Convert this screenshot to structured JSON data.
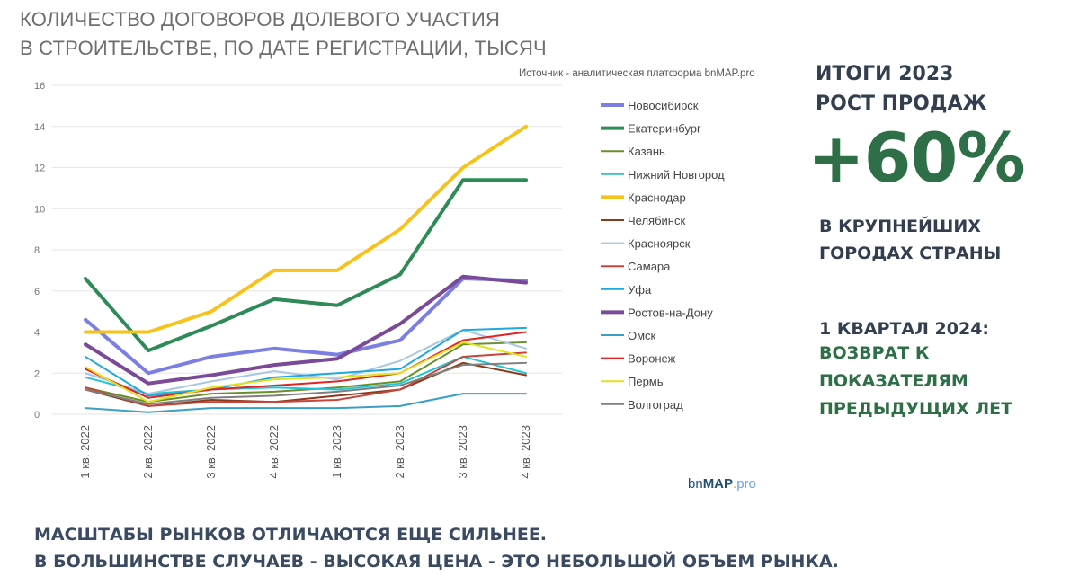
{
  "title": {
    "line1": "КОЛИЧЕСТВО ДОГОВОРОВ ДОЛЕВОГО УЧАСТИЯ",
    "line2": "В СТРОИТЕЛЬСТВЕ, ПО ДАТЕ РЕГИСТРАЦИИ, ТЫСЯЧ"
  },
  "source": "Источник - аналитическая платформа bnMAP.pro",
  "logo": {
    "bn": "bn",
    "map": "MAP",
    "dot": ".",
    "pro": "pro"
  },
  "right_panel": {
    "head1": "ИТОГИ 2023",
    "head2": "РОСТ ПРОДАЖ",
    "big": "+60%",
    "sub1": "В КРУПНЕЙШИХ",
    "sub2": "ГОРОДАХ СТРАНЫ",
    "q_head": "1 КВАРТАЛ 2024:",
    "q1": "ВОЗВРАТ К",
    "q2": "ПОКАЗАТЕЛЯМ",
    "q3": "ПРЕДЫДУЩИХ ЛЕТ"
  },
  "bottom": {
    "line1": "МАСШТАБЫ РЫНКОВ ОТЛИЧАЮТСЯ ЕЩЕ СИЛЬНЕЕ.",
    "line2": "В БОЛЬШИНСТВЕ СЛУЧАЕВ - ВЫСОКАЯ ЦЕНА  - ЭТО НЕБОЛЬШОЙ ОБЪЕМ РЫНКА."
  },
  "chart_data": {
    "type": "line",
    "categories": [
      "1 кв. 2022",
      "2 кв. 2022",
      "3 кв. 2022",
      "4 кв. 2022",
      "1 кв. 2023",
      "2 кв. 2023",
      "3 кв. 2023",
      "4 кв. 2023"
    ],
    "ylim": [
      0,
      16
    ],
    "yticks": [
      0,
      2,
      4,
      6,
      8,
      10,
      12,
      14,
      16
    ],
    "grid": true,
    "legend_position": "right",
    "series": [
      {
        "name": "Новосибирск",
        "color": "#7b7fe3",
        "bold": true,
        "values": [
          4.6,
          2.0,
          2.8,
          3.2,
          2.9,
          3.6,
          6.6,
          6.5
        ]
      },
      {
        "name": "Екатеринбург",
        "color": "#2e8b57",
        "bold": true,
        "values": [
          6.6,
          3.1,
          4.3,
          5.6,
          5.3,
          6.8,
          11.4,
          11.4
        ]
      },
      {
        "name": "Казань",
        "color": "#6a8f2a",
        "bold": false,
        "values": [
          1.3,
          0.6,
          1.0,
          1.1,
          1.3,
          1.6,
          3.4,
          3.5
        ]
      },
      {
        "name": "Нижний Новгород",
        "color": "#22c4d6",
        "bold": false,
        "values": [
          1.8,
          1.0,
          1.2,
          1.3,
          1.2,
          1.5,
          2.8,
          2.0
        ]
      },
      {
        "name": "Краснодар",
        "color": "#f7c21a",
        "bold": true,
        "values": [
          4.0,
          4.0,
          5.0,
          7.0,
          7.0,
          9.0,
          12.0,
          14.0
        ]
      },
      {
        "name": "Челябинск",
        "color": "#8b3a1a",
        "bold": false,
        "values": [
          1.2,
          0.4,
          0.7,
          0.6,
          0.9,
          1.2,
          2.5,
          1.9
        ]
      },
      {
        "name": "Красноярск",
        "color": "#a9c6e2",
        "bold": false,
        "values": [
          2.0,
          1.0,
          1.6,
          2.1,
          1.7,
          2.6,
          4.1,
          3.2
        ]
      },
      {
        "name": "Самара",
        "color": "#c8453c",
        "bold": false,
        "values": [
          1.3,
          0.4,
          0.6,
          0.6,
          0.7,
          1.2,
          2.8,
          3.0
        ]
      },
      {
        "name": "Уфа",
        "color": "#1fa7e0",
        "bold": false,
        "values": [
          2.8,
          0.9,
          1.2,
          1.8,
          2.0,
          2.2,
          4.1,
          4.2
        ]
      },
      {
        "name": "Ростов-на-Дону",
        "color": "#7a4a98",
        "bold": true,
        "values": [
          3.4,
          1.5,
          1.9,
          2.4,
          2.7,
          4.4,
          6.7,
          6.4
        ]
      },
      {
        "name": "Омск",
        "color": "#3a9fc4",
        "bold": false,
        "values": [
          0.3,
          0.1,
          0.3,
          0.3,
          0.3,
          0.4,
          1.0,
          1.0
        ]
      },
      {
        "name": "Воронеж",
        "color": "#e02424",
        "bold": false,
        "values": [
          2.2,
          0.8,
          1.2,
          1.4,
          1.6,
          2.0,
          3.6,
          4.0
        ]
      },
      {
        "name": "Пермь",
        "color": "#e3e022",
        "bold": false,
        "values": [
          2.3,
          0.6,
          1.3,
          1.7,
          1.8,
          2.0,
          3.5,
          2.8
        ]
      },
      {
        "name": "Волгоград",
        "color": "#7f7f7f",
        "bold": false,
        "values": [
          1.2,
          0.5,
          0.8,
          0.9,
          1.1,
          1.4,
          2.4,
          2.5
        ]
      }
    ]
  }
}
